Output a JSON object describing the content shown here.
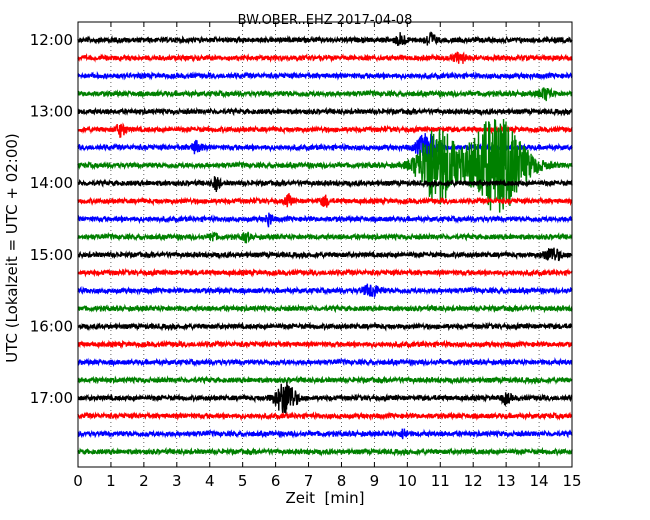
{
  "chart_data": {
    "type": "line",
    "chart_kind": "seismogram dayplot (helicorder)",
    "title": "BW.OBER..EHZ 2017-04-08",
    "xlabel": "Zeit  [min]",
    "ylabel": "UTC (Lokalzeit = UTC + 02:00)",
    "xlim": [
      0,
      15
    ],
    "x_ticks": [
      0,
      1,
      2,
      3,
      4,
      5,
      6,
      7,
      8,
      9,
      10,
      11,
      12,
      13,
      14,
      15
    ],
    "x_tick_labels": [
      "0",
      "1",
      "2",
      "3",
      "4",
      "5",
      "6",
      "7",
      "8",
      "9",
      "10",
      "11",
      "12",
      "13",
      "14",
      "15"
    ],
    "y_ticks": [
      "12:00",
      "13:00",
      "14:00",
      "15:00",
      "16:00",
      "17:00"
    ],
    "vertical_grid": "dotted at each minute",
    "trace_interval_min": 15,
    "colors": [
      "#000000",
      "#ff0000",
      "#0000ff",
      "#008000"
    ],
    "traces": [
      {
        "start": "12:00",
        "color": "#000000",
        "events": [
          {
            "t": 9.8,
            "amp": 0.7,
            "dur": 0.3
          },
          {
            "t": 10.7,
            "amp": 0.8,
            "dur": 0.3
          }
        ]
      },
      {
        "start": "12:15",
        "color": "#ff0000",
        "events": [
          {
            "t": 11.6,
            "amp": 0.5,
            "dur": 0.4
          }
        ]
      },
      {
        "start": "12:30",
        "color": "#0000ff",
        "events": []
      },
      {
        "start": "12:45",
        "color": "#008000",
        "events": [
          {
            "t": 14.2,
            "amp": 0.6,
            "dur": 0.4
          }
        ]
      },
      {
        "start": "13:00",
        "color": "#000000",
        "events": []
      },
      {
        "start": "13:15",
        "color": "#ff0000",
        "events": [
          {
            "t": 1.3,
            "amp": 0.7,
            "dur": 0.3
          }
        ]
      },
      {
        "start": "13:30",
        "color": "#0000ff",
        "events": [
          {
            "t": 3.6,
            "amp": 0.6,
            "dur": 0.3
          },
          {
            "t": 10.6,
            "amp": 1.5,
            "dur": 0.6
          }
        ]
      },
      {
        "start": "13:45",
        "color": "#008000",
        "events": [
          {
            "t": 10.9,
            "amp": 4.5,
            "dur": 1.1
          },
          {
            "t": 12.7,
            "amp": 5.5,
            "dur": 1.7
          }
        ]
      },
      {
        "start": "14:00",
        "color": "#000000",
        "events": [
          {
            "t": 4.2,
            "amp": 0.8,
            "dur": 0.2
          }
        ]
      },
      {
        "start": "14:15",
        "color": "#ff0000",
        "events": [
          {
            "t": 6.4,
            "amp": 0.6,
            "dur": 0.2
          },
          {
            "t": 7.5,
            "amp": 0.6,
            "dur": 0.2
          }
        ]
      },
      {
        "start": "14:30",
        "color": "#0000ff",
        "events": [
          {
            "t": 5.8,
            "amp": 0.7,
            "dur": 0.2
          }
        ]
      },
      {
        "start": "14:45",
        "color": "#008000",
        "events": [
          {
            "t": 4.1,
            "amp": 0.5,
            "dur": 0.2
          },
          {
            "t": 5.1,
            "amp": 0.5,
            "dur": 0.2
          }
        ]
      },
      {
        "start": "15:00",
        "color": "#000000",
        "events": [
          {
            "t": 14.4,
            "amp": 0.7,
            "dur": 0.5
          }
        ]
      },
      {
        "start": "15:15",
        "color": "#ff0000",
        "events": []
      },
      {
        "start": "15:30",
        "color": "#0000ff",
        "events": [
          {
            "t": 8.9,
            "amp": 0.6,
            "dur": 0.5
          }
        ]
      },
      {
        "start": "15:45",
        "color": "#008000",
        "events": []
      },
      {
        "start": "16:00",
        "color": "#000000",
        "events": []
      },
      {
        "start": "16:15",
        "color": "#ff0000",
        "events": []
      },
      {
        "start": "16:30",
        "color": "#0000ff",
        "events": []
      },
      {
        "start": "16:45",
        "color": "#008000",
        "events": []
      },
      {
        "start": "17:00",
        "color": "#000000",
        "events": [
          {
            "t": 6.3,
            "amp": 1.8,
            "dur": 0.6
          },
          {
            "t": 13.0,
            "amp": 0.5,
            "dur": 0.3
          }
        ]
      },
      {
        "start": "17:15",
        "color": "#ff0000",
        "events": []
      },
      {
        "start": "17:30",
        "color": "#0000ff",
        "events": [
          {
            "t": 9.9,
            "amp": 0.5,
            "dur": 0.2
          }
        ]
      },
      {
        "start": "17:45",
        "color": "#008000",
        "events": []
      }
    ]
  }
}
